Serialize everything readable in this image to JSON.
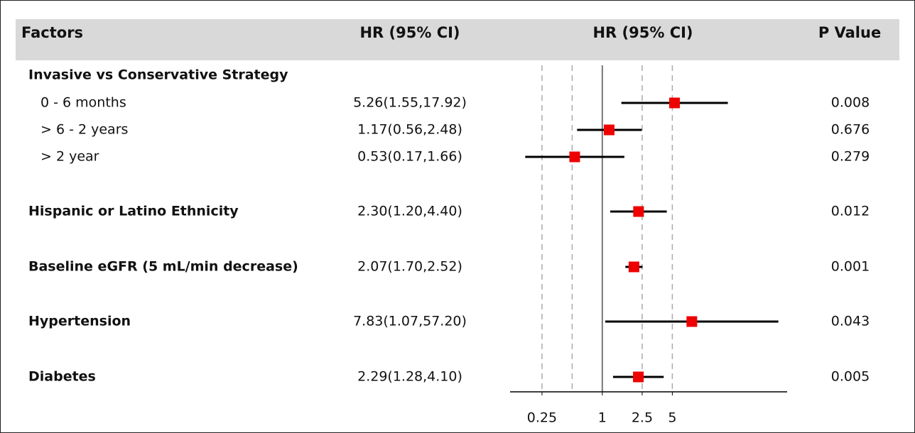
{
  "chart_data": {
    "type": "forest",
    "headers": [
      "Factors",
      "HR (95% CI)",
      "HR (95% CI)",
      "P Value"
    ],
    "rows": [
      {
        "label": "Invasive vs Conservative Strategy",
        "bold": true
      },
      {
        "label": "0 - 6 months",
        "ci_text": "5.26(1.55,17.92)",
        "p": "0.008",
        "hr": 5.26,
        "lower": 1.55,
        "upper": 17.92,
        "bold": false
      },
      {
        "label": "> 6 - 2 years",
        "ci_text": "1.17(0.56,2.48)",
        "p": "0.676",
        "hr": 1.17,
        "lower": 0.56,
        "upper": 2.48,
        "bold": false
      },
      {
        "label": "> 2 year",
        "ci_text": "0.53(0.17,1.66)",
        "p": "0.279",
        "hr": 0.53,
        "lower": 0.17,
        "upper": 1.66,
        "bold": false
      },
      {
        "label": "Hispanic or Latino Ethnicity",
        "ci_text": "2.30(1.20,4.40)",
        "p": "0.012",
        "hr": 2.3,
        "lower": 1.2,
        "upper": 4.4,
        "bold": true
      },
      {
        "label": "Baseline eGFR (5 mL/min decrease)",
        "ci_text": "2.07(1.70,2.52)",
        "p": "0.001",
        "hr": 2.07,
        "lower": 1.7,
        "upper": 2.52,
        "bold": true
      },
      {
        "label": "Hypertension",
        "ci_text": "7.83(1.07,57.20)",
        "p": "0.043",
        "hr": 7.83,
        "lower": 1.07,
        "upper": 57.2,
        "bold": true
      },
      {
        "label": "Diabetes",
        "ci_text": "2.29(1.28,4.10)",
        "p": "0.005",
        "hr": 2.29,
        "lower": 1.28,
        "upper": 4.1,
        "bold": true
      }
    ],
    "xscale": "log",
    "xlim": [
      0.12,
      70
    ],
    "xticks": [
      0.25,
      1,
      2.5,
      5
    ],
    "gridlines": [
      0.25,
      0.5,
      2.5,
      5
    ],
    "refline": 1,
    "marker_color": "#ee0000",
    "ci_color": "#000000"
  }
}
